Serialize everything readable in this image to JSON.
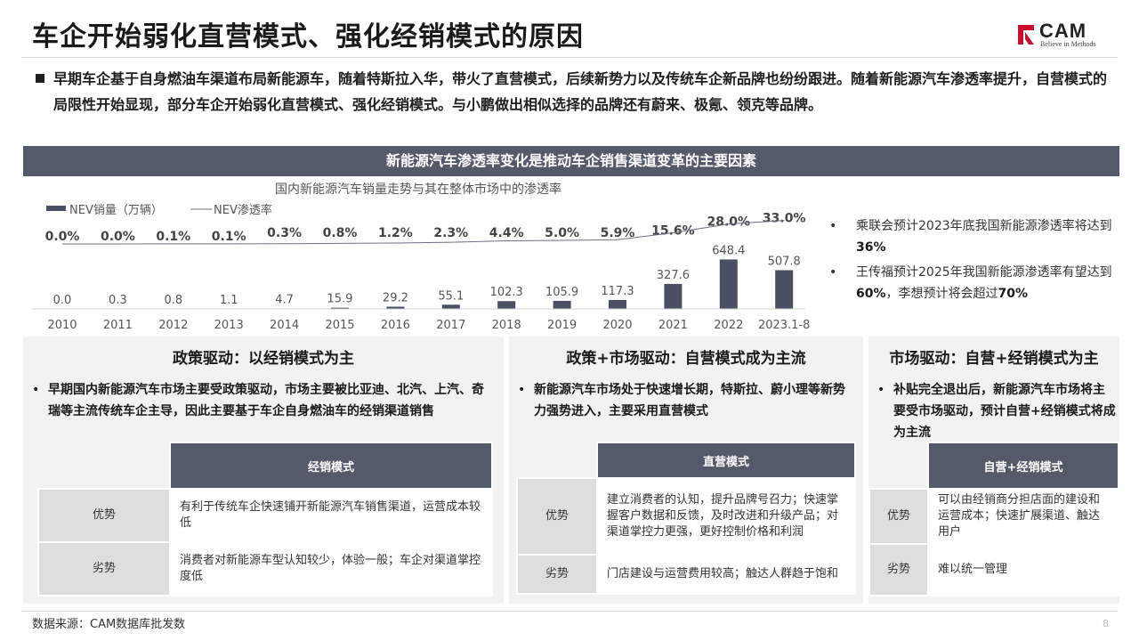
{
  "title": "车企开始弱化直营模式、强化经销模式的原因",
  "logo": {
    "brand": "CAM",
    "slogan": "Believe in Methods",
    "accent": "#c8102e"
  },
  "intro": "早期车企基于自身燃油车渠道布局新能源车，随着特斯拉入华，带火了直营模式，后续新势力以及传统车企新品牌也纷纷跟进。随着新能源汽车渗透率提升，自营模式的局限性开始显现，部分车企开始弱化直营模式、强化经销模式。与小鹏做出相似选择的品牌还有蔚来、极氪、领克等品牌。",
  "banner": "新能源汽车渗透率变化是推动车企销售渠道变革的主要因素",
  "chart_data": {
    "type": "bar",
    "title": "国内新能源汽车销量走势与其在整体市场中的渗透率",
    "legend": [
      "NEV销量（万辆）",
      "NEV渗透率"
    ],
    "categories": [
      "2010",
      "2011",
      "2012",
      "2013",
      "2014",
      "2015",
      "2016",
      "2017",
      "2018",
      "2019",
      "2020",
      "2021",
      "2022",
      "2023.1-8"
    ],
    "series": [
      {
        "name": "NEV销量（万辆）",
        "type": "bar",
        "values": [
          0.0,
          0.3,
          0.8,
          1.1,
          4.7,
          15.9,
          29.2,
          55.1,
          102.3,
          105.9,
          117.3,
          327.6,
          648.4,
          507.8
        ],
        "labels": [
          "0.0",
          "0.3",
          "0.8",
          "1.1",
          "4.7",
          "15.9",
          "29.2",
          "55.1",
          "102.3",
          "105.9",
          "117.3",
          "327.6",
          "648.4",
          "507.8"
        ]
      },
      {
        "name": "NEV渗透率",
        "type": "line",
        "values": [
          0.0,
          0.0,
          0.1,
          0.1,
          0.3,
          0.8,
          1.2,
          2.3,
          4.4,
          5.0,
          5.9,
          15.6,
          28.0,
          33.0
        ],
        "labels": [
          "0.0%",
          "0.0%",
          "0.1%",
          "0.1%",
          "0.3%",
          "0.8%",
          "1.2%",
          "2.3%",
          "4.4%",
          "5.0%",
          "5.9%",
          "15.6%",
          "28.0%",
          "33.0%"
        ]
      }
    ],
    "bar_color": "#4a4f63",
    "line_color": "#6b7080",
    "ylim": [
      0,
      700
    ]
  },
  "side_notes": [
    {
      "bullet": "•",
      "text": "乘联会预计2023年底我国新能源渗透率将达到",
      "strong": "36%",
      "tail": ""
    },
    {
      "bullet": "•",
      "text": "王传福预计2025年我国新能源渗透率有望达到",
      "strong": "60%",
      "tail": "，李想预计将会超过",
      "strong2": "70%"
    }
  ],
  "panels": [
    {
      "title": "政策驱动：以经销模式为主",
      "bullet": "早期国内新能源汽车市场主要受政策驱动，市场主要被比亚迪、北汽、上汽、奇瑞等主流传统车企主导，因此主要基于车企自身燃油车的经销渠道销售",
      "table_header": "经销模式",
      "rows": [
        {
          "key": "优势",
          "value": "有利于传统车企快速铺开新能源汽车销售渠道，运营成本较低"
        },
        {
          "key": "劣势",
          "value": "消费者对新能源车型认知较少，体验一般；车企对渠道掌控度低"
        }
      ]
    },
    {
      "title": "政策+市场驱动：自营模式成为主流",
      "bullet": "新能源汽车市场处于快速增长期，特斯拉、蔚小理等新势力强势进入，主要采用直营模式",
      "table_header": "直营模式",
      "rows": [
        {
          "key": "优势",
          "value": "建立消费者的认知，提升品牌号召力；快速掌握客户数据和反馈，及时改进和升级产品；对渠道掌控力更强，更好控制价格和利润"
        },
        {
          "key": "劣势",
          "value": "门店建设与运营费用较高；触达人群趋于饱和"
        }
      ]
    },
    {
      "title": "市场驱动：自营+经销模式为主",
      "bullet": "补贴完全退出后，新能源汽车市场将主要受市场驱动，预计自营+经销模式将成为主流",
      "table_header": "自营+经销模式",
      "rows": [
        {
          "key": "优势",
          "value": "可以由经销商分担店面的建设和运营成本；快速扩展渠道、触达用户"
        },
        {
          "key": "劣势",
          "value": "难以统一管理"
        }
      ]
    }
  ],
  "source": "数据来源：CAM数据库批发数",
  "page_number": "8"
}
